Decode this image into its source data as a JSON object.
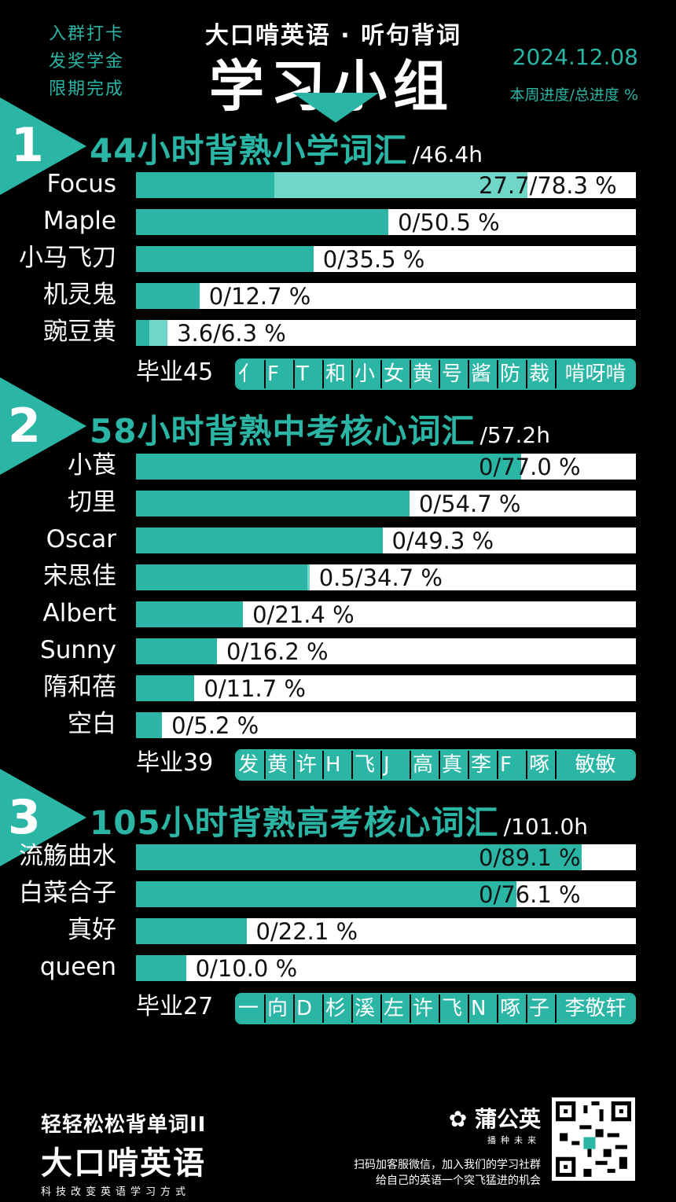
{
  "header": {
    "notes": [
      "入群打卡",
      "发奖学金",
      "限期完成"
    ],
    "subtitle": "大口啃英语 · 听句背词",
    "title": "学习小组",
    "date": "2024.12.08",
    "legend": "本周进度/总进度 %"
  },
  "colors": {
    "accent": "#2ab5a5",
    "accent_light": "#6fd6c8",
    "background": "#000000"
  },
  "sections": [
    {
      "number": "1",
      "title": "44小时背熟小学词汇",
      "hours": "/46.4h",
      "rows": [
        {
          "name": "Focus",
          "label": "27.7/78.3 %",
          "week": 27.7,
          "total": 78.3
        },
        {
          "name": "Maple",
          "label": "0/50.5 %",
          "week": 50.5,
          "total": 50.5
        },
        {
          "name": "小马飞刀",
          "label": "0/35.5 %",
          "week": 35.5,
          "total": 35.5
        },
        {
          "name": "机灵鬼",
          "label": "0/12.7 %",
          "week": 12.7,
          "total": 12.7
        },
        {
          "name": "豌豆黄",
          "label": "3.6/6.3 %",
          "week": 2.7,
          "total": 6.3
        }
      ],
      "graduated_label": "毕业45",
      "graduated": [
        "亻",
        "F",
        "T",
        "和",
        "小",
        "女",
        "黄",
        "号",
        "酱",
        "防",
        "裁",
        "啃呀啃"
      ]
    },
    {
      "number": "2",
      "title": "58小时背熟中考核心词汇",
      "hours": "/57.2h",
      "rows": [
        {
          "name": "小莨",
          "label": "0/77.0 %",
          "week": 77.0,
          "total": 77.0
        },
        {
          "name": "切里",
          "label": "0/54.7 %",
          "week": 54.7,
          "total": 54.7
        },
        {
          "name": "Oscar",
          "label": "0/49.3 %",
          "week": 49.3,
          "total": 49.3
        },
        {
          "name": "宋思佳",
          "label": "0.5/34.7 %",
          "week": 34.2,
          "total": 34.7
        },
        {
          "name": "Albert",
          "label": "0/21.4 %",
          "week": 21.4,
          "total": 21.4
        },
        {
          "name": "Sunny",
          "label": "0/16.2 %",
          "week": 16.2,
          "total": 16.2
        },
        {
          "name": "隋和蓓",
          "label": "0/11.7 %",
          "week": 11.7,
          "total": 11.7
        },
        {
          "name": "空白",
          "label": "0/5.2 %",
          "week": 5.2,
          "total": 5.2
        }
      ],
      "graduated_label": "毕业39",
      "graduated": [
        "发",
        "黄",
        "许",
        "H",
        "飞",
        "J",
        "高",
        "真",
        "李",
        "F",
        "啄",
        "敏敏"
      ]
    },
    {
      "number": "3",
      "title": "105小时背熟高考核心词汇",
      "hours": "/101.0h",
      "rows": [
        {
          "name": "流觞曲水",
          "label": "0/89.1 %",
          "week": 89.1,
          "total": 89.1
        },
        {
          "name": "白菜合子",
          "label": "0/76.1 %",
          "week": 76.1,
          "total": 76.1
        },
        {
          "name": "真好",
          "label": "0/22.1 %",
          "week": 22.1,
          "total": 22.1
        },
        {
          "name": "queen",
          "label": "0/10.0 %",
          "week": 10.0,
          "total": 10.0
        }
      ],
      "graduated_label": "毕业27",
      "graduated": [
        "一",
        "向",
        "D",
        "杉",
        "溪",
        "左",
        "许",
        "飞",
        "N",
        "啄",
        "子",
        "李敬轩"
      ]
    }
  ],
  "footer": {
    "brand_line1": "轻轻松松背单词II",
    "brand_line2": "大口啃英语",
    "brand_line3": "科技改变英语学习方式",
    "logo": "蒲公英",
    "logo_sub": "播种未来",
    "note_line1": "扫码加客服微信，加入我们的学习社群",
    "note_line2": "给自己的英语一个突飞猛进的机会"
  }
}
